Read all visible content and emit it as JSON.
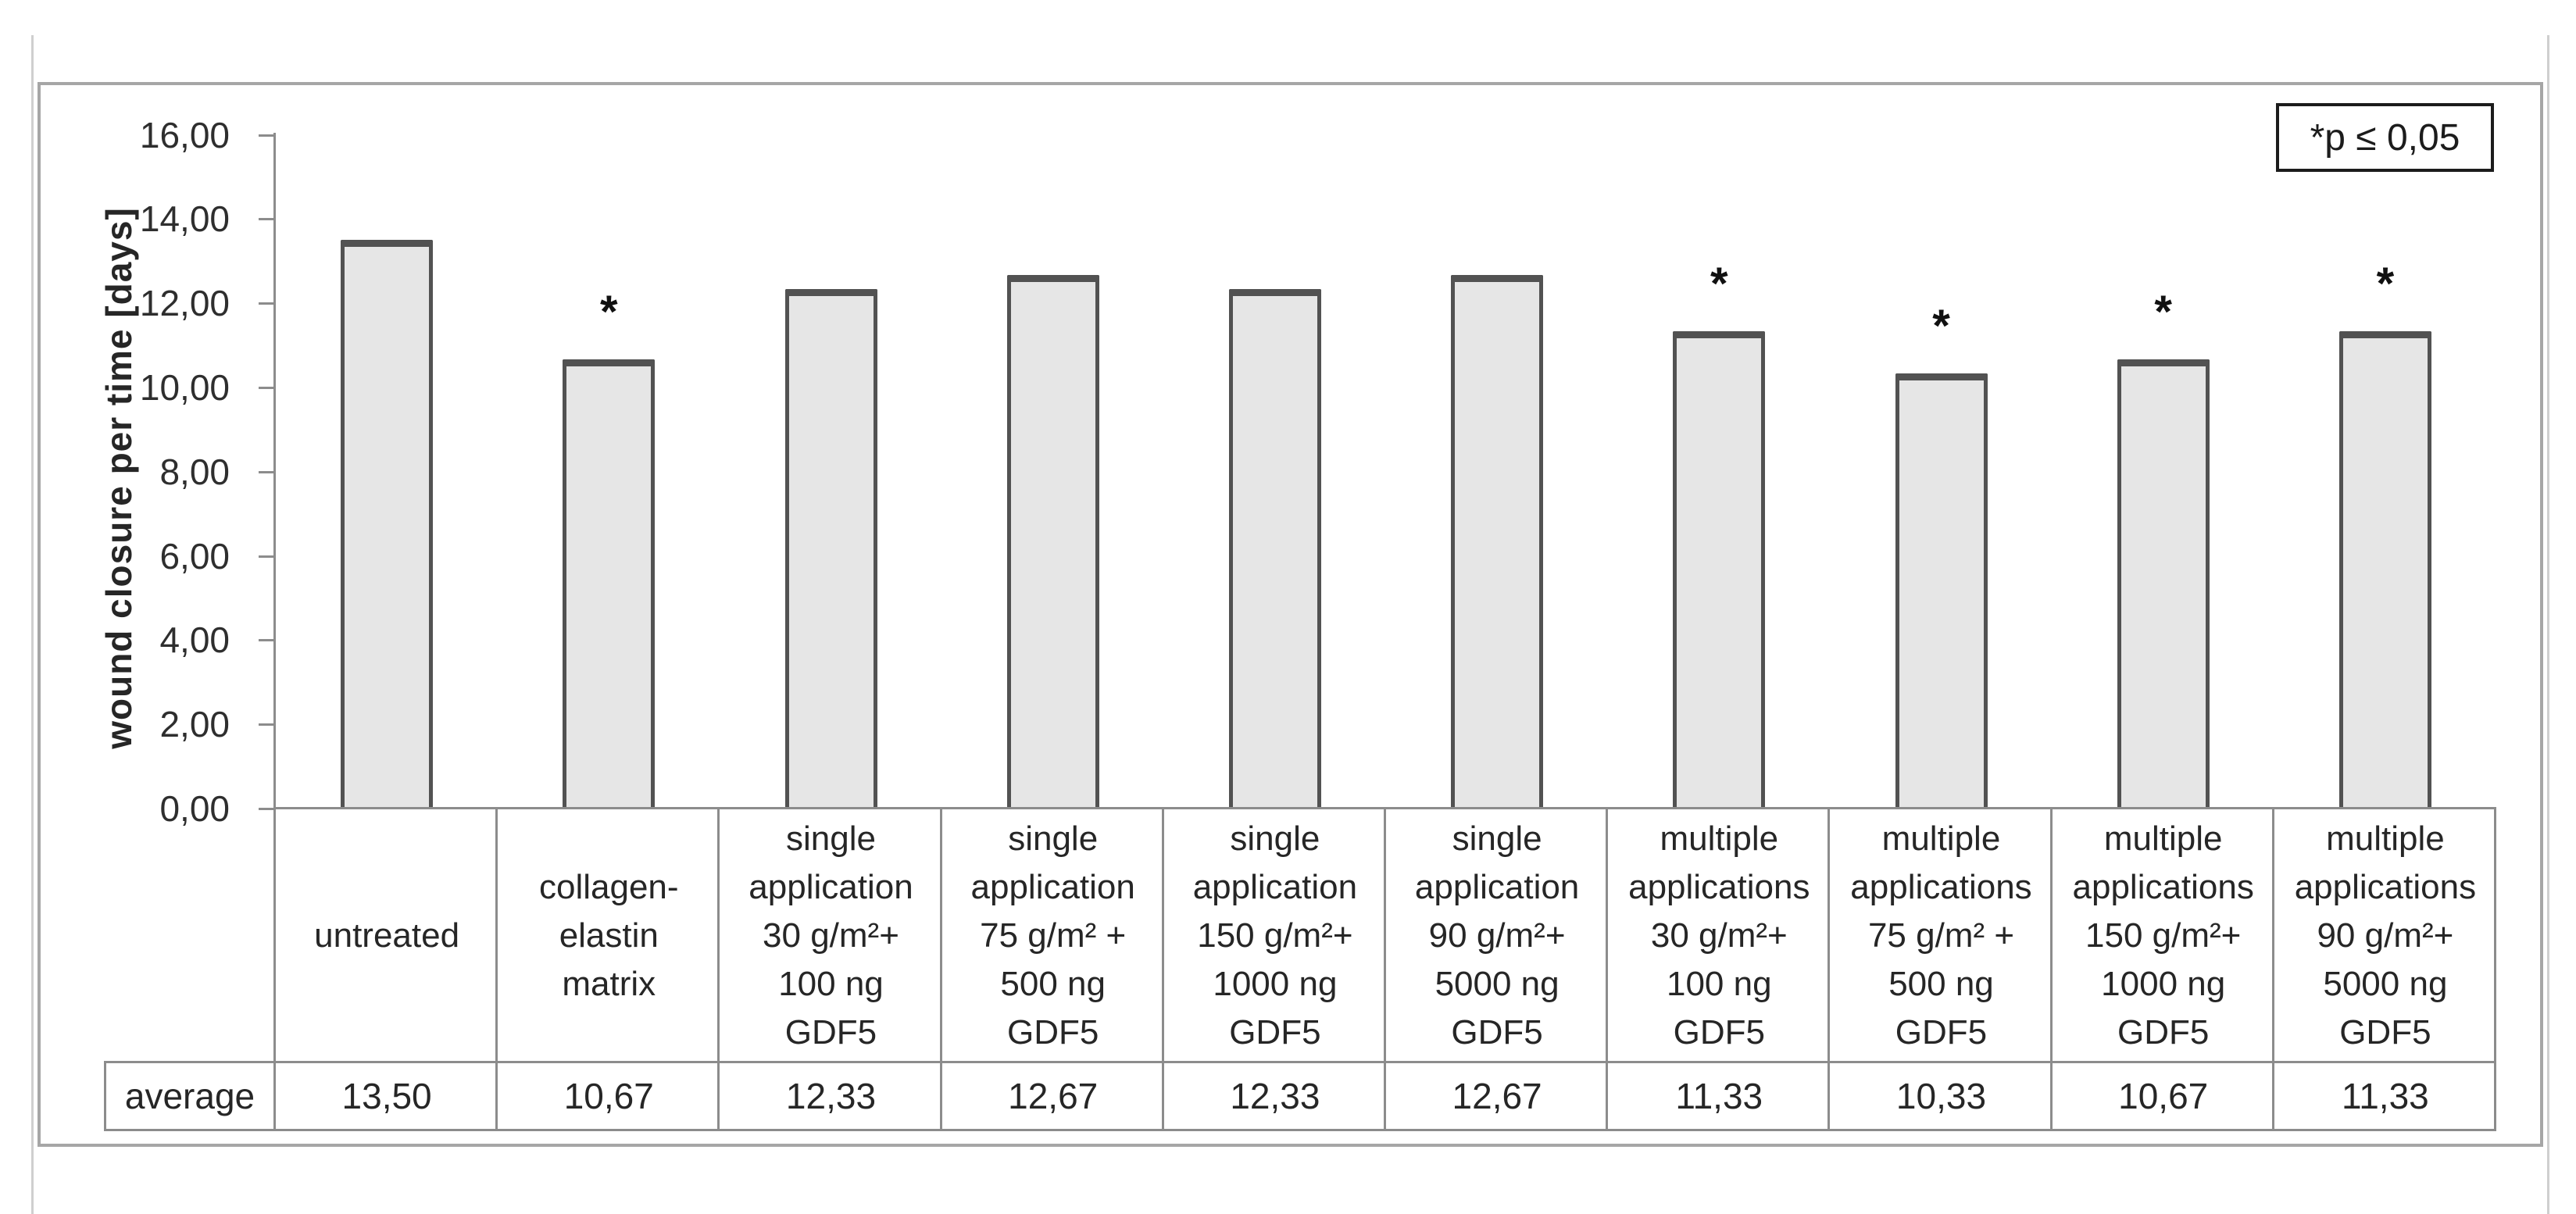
{
  "figure": {
    "legend_text": "*p ≤ 0,05",
    "average_row_label": "average"
  },
  "colors": {
    "bar_fill": "#e6e6e6",
    "bar_border": "#525252",
    "axis_line": "#8c8c8c",
    "table_line": "#8c8c8c",
    "frame_border": "#a6a6a6",
    "legend_border": "#1c1c1c",
    "text": "#262626"
  },
  "chart_data": {
    "type": "bar",
    "title": "",
    "xlabel": "",
    "ylabel": "wound closure per time [days]",
    "ylim": [
      0,
      16
    ],
    "ytick_step": 2,
    "ytick_labels": [
      "0,00",
      "2,00",
      "4,00",
      "6,00",
      "8,00",
      "10,00",
      "12,00",
      "14,00",
      "16,00"
    ],
    "grid": false,
    "legend_position": "top-right",
    "significance_marker": "*",
    "categories": [
      "untreated",
      "collagen-\nelastin\nmatrix",
      "single\napplication\n30 g/m²+\n100 ng\nGDF5",
      "single\napplication\n75 g/m² +\n500 ng\nGDF5",
      "single\napplication\n150 g/m²+\n1000 ng\nGDF5",
      "single\napplication\n90 g/m²+\n5000 ng\nGDF5",
      "multiple\napplications\n30 g/m²+\n100 ng\nGDF5",
      "multiple\napplications\n75 g/m² +\n500 ng\nGDF5",
      "multiple\napplications\n150 g/m²+\n1000 ng\nGDF5",
      "multiple\napplications\n90 g/m²+\n5000 ng\nGDF5"
    ],
    "values": [
      13.5,
      10.67,
      12.33,
      12.67,
      12.33,
      12.67,
      11.33,
      10.33,
      10.67,
      11.33
    ],
    "value_labels": [
      "13,50",
      "10,67",
      "12,33",
      "12,67",
      "12,33",
      "12,67",
      "11,33",
      "10,33",
      "10,67",
      "11,33"
    ],
    "significant": [
      false,
      true,
      false,
      false,
      false,
      false,
      true,
      true,
      true,
      true
    ],
    "average_row": {
      "label": "average",
      "values": [
        "13,50",
        "10,67",
        "12,33",
        "12,67",
        "12,33",
        "12,67",
        "11,33",
        "10,33",
        "10,67",
        "11,33"
      ]
    }
  }
}
